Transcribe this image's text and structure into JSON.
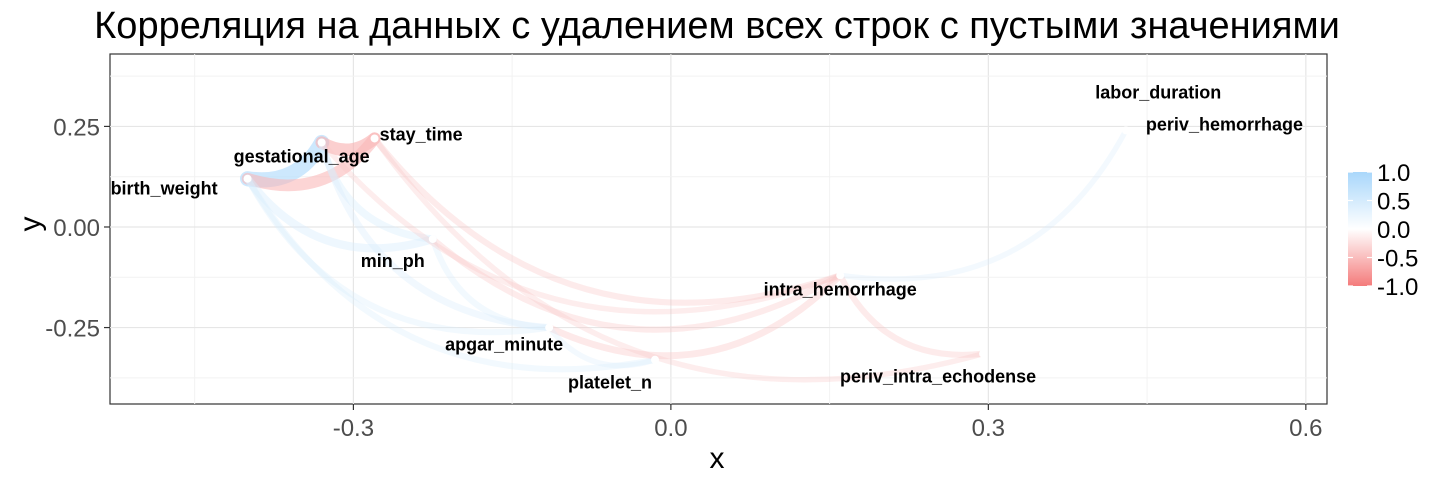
{
  "chart_data": {
    "type": "network",
    "title": "Корреляция на данных с удалением всех строк с пустыми значениями",
    "xlabel": "x",
    "ylabel": "y",
    "xlim": [
      -0.53,
      0.62
    ],
    "ylim": [
      -0.44,
      0.43
    ],
    "x_ticks": [
      -0.3,
      0.0,
      0.3,
      0.6
    ],
    "x_tick_labels": [
      "-0.3",
      "0.0",
      "0.3",
      "0.6"
    ],
    "y_ticks": [
      0.25,
      0.0,
      -0.25
    ],
    "y_tick_labels": [
      "0.25",
      "0.00",
      "-0.25"
    ],
    "grid": true,
    "legend": {
      "placement": "right",
      "scale": [
        -1.0,
        1.0
      ],
      "labels": [
        "1.0",
        "0.5",
        "0.0",
        "-0.5",
        "-1.0"
      ],
      "values": [
        1.0,
        0.5,
        0.0,
        -0.5,
        -1.0
      ],
      "high_color": "#a9d7fb",
      "mid_color": "#ffffff",
      "low_color": "#f47b7b"
    },
    "nodes": [
      {
        "name": "labor_duration",
        "x": 0.47,
        "y": 0.28
      },
      {
        "name": "periv_hemorrhage",
        "x": 0.43,
        "y": 0.24
      },
      {
        "name": "stay_time",
        "x": -0.28,
        "y": 0.22
      },
      {
        "name": "gestational_age",
        "x": -0.33,
        "y": 0.21
      },
      {
        "name": "birth_weight",
        "x": -0.4,
        "y": 0.12
      },
      {
        "name": "min_ph",
        "x": -0.225,
        "y": -0.03
      },
      {
        "name": "intra_hemorrhage",
        "x": 0.16,
        "y": -0.12
      },
      {
        "name": "apgar_minute",
        "x": -0.115,
        "y": -0.25
      },
      {
        "name": "platelet_n",
        "x": -0.015,
        "y": -0.33
      },
      {
        "name": "periv_intra_echodense",
        "x": 0.295,
        "y": -0.315
      }
    ],
    "edges": [
      {
        "from": "birth_weight",
        "to": "gestational_age",
        "r": 0.8
      },
      {
        "from": "gestational_age",
        "to": "stay_time",
        "r": -0.6
      },
      {
        "from": "birth_weight",
        "to": "stay_time",
        "r": -0.55
      },
      {
        "from": "birth_weight",
        "to": "min_ph",
        "r": 0.3
      },
      {
        "from": "gestational_age",
        "to": "min_ph",
        "r": 0.25
      },
      {
        "from": "birth_weight",
        "to": "apgar_minute",
        "r": 0.15
      },
      {
        "from": "gestational_age",
        "to": "apgar_minute",
        "r": 0.2
      },
      {
        "from": "birth_weight",
        "to": "platelet_n",
        "r": 0.15
      },
      {
        "from": "min_ph",
        "to": "apgar_minute",
        "r": 0.15
      },
      {
        "from": "stay_time",
        "to": "intra_hemorrhage",
        "r": -0.15
      },
      {
        "from": "gestational_age",
        "to": "intra_hemorrhage",
        "r": -0.1
      },
      {
        "from": "min_ph",
        "to": "intra_hemorrhage",
        "r": -0.15
      },
      {
        "from": "apgar_minute",
        "to": "intra_hemorrhage",
        "r": -0.2
      },
      {
        "from": "intra_hemorrhage",
        "to": "periv_intra_echodense",
        "r": -0.15
      },
      {
        "from": "stay_time",
        "to": "periv_intra_echodense",
        "r": -0.1
      },
      {
        "from": "intra_hemorrhage",
        "to": "periv_hemorrhage",
        "r": 0.1
      },
      {
        "from": "apgar_minute",
        "to": "platelet_n",
        "r": 0.1
      }
    ]
  }
}
